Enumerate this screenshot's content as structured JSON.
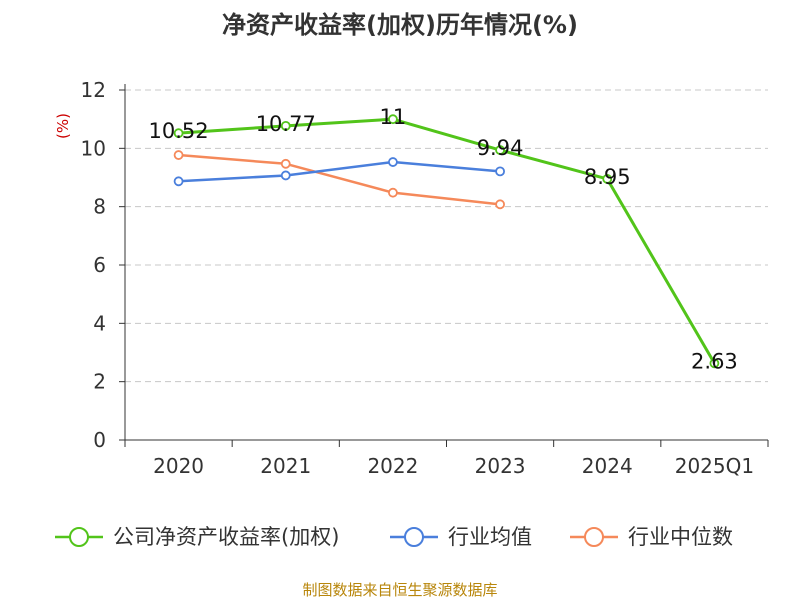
{
  "chart_data": {
    "type": "line",
    "title": "净资产收益率(加权)历年情况(%)",
    "ylabel": "(%)",
    "ylim": [
      0,
      12
    ],
    "yticks": [
      0,
      2,
      4,
      6,
      8,
      10,
      12
    ],
    "categories": [
      "2020",
      "2021",
      "2022",
      "2023",
      "2024",
      "2025Q1"
    ],
    "grid": true,
    "legend_position": "bottom",
    "series": [
      {
        "name": "公司净资产收益率(加权)",
        "color": "#52c41a",
        "values": [
          10.52,
          10.77,
          11,
          9.94,
          8.95,
          2.63
        ],
        "labels": [
          "10.52",
          "10.77",
          "11",
          "9.94",
          "8.95",
          "2.63"
        ]
      },
      {
        "name": "行业均值",
        "color": "#4a7fdc",
        "values": [
          8.87,
          9.07,
          9.53,
          9.21,
          null,
          null
        ]
      },
      {
        "name": "行业中位数",
        "color": "#f5895a",
        "values": [
          9.77,
          9.47,
          8.48,
          8.08,
          null,
          null
        ]
      }
    ],
    "source": "制图数据来自恒生聚源数据库",
    "unit_color": "#cc0000",
    "source_color": "#b8860b"
  }
}
